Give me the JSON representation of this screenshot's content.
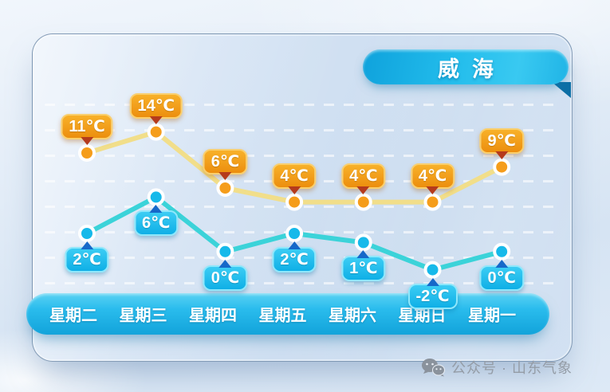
{
  "banner": {
    "label": "威海"
  },
  "watermark": {
    "icon": "wechat-official-account-icon",
    "text": "公众号 · 山东气象"
  },
  "chart_data": {
    "type": "line",
    "title": "威海",
    "categories": [
      "星期二",
      "星期三",
      "星期四",
      "星期五",
      "星期六",
      "星期日",
      "星期一"
    ],
    "series": [
      {
        "id": "high",
        "unit": "℃",
        "values": [
          11,
          14,
          6,
          4,
          4,
          4,
          9
        ],
        "display": [
          "11℃",
          "14℃",
          "6℃",
          "4℃",
          "4℃",
          "4℃",
          "9℃"
        ]
      },
      {
        "id": "low",
        "unit": "℃",
        "values": [
          2,
          6,
          0,
          2,
          1,
          -2,
          0
        ],
        "display": [
          "2℃",
          "6℃",
          "0℃",
          "2℃",
          "1℃",
          "-2℃",
          "0℃"
        ]
      }
    ],
    "grid": "horizontal-dashed",
    "legend": "none",
    "ylim": [
      -4,
      16
    ]
  },
  "colors": {
    "banner": "#1cb4e6",
    "high_line": "#f1de8a",
    "high_point": "#f59d1b",
    "high_label_top": "#f8b12a",
    "high_label_bottom": "#ec8e0e",
    "high_label_border": "#f9cf6e",
    "high_arrow": "#b53a1c",
    "low_line": "#3bd3d9",
    "low_point": "#16b9ea",
    "low_label_top": "#3ccdf4",
    "low_label_bottom": "#0fafe6",
    "low_label_border": "#8fe7fb",
    "low_arrow": "#1668c9",
    "day_bar": "#1caee0",
    "watermark_text": "#949ca6"
  }
}
